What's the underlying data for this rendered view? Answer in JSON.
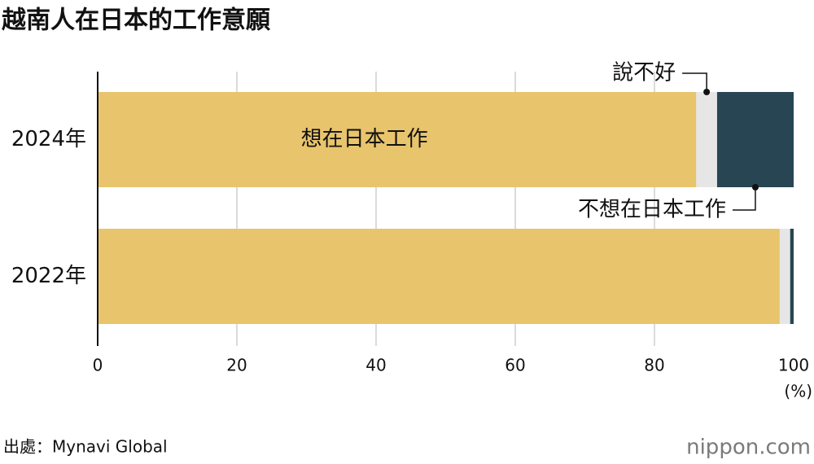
{
  "chart_data": {
    "type": "stacked-bar-horizontal",
    "title": "越南人在日本的工作意願",
    "categories": [
      "2024年",
      "2022年"
    ],
    "series": [
      {
        "name": "想在日本工作",
        "color": "#e8c46c",
        "values": [
          86,
          98
        ]
      },
      {
        "name": "說不好",
        "color": "#e6e6e6",
        "values": [
          3,
          1.5
        ]
      },
      {
        "name": "不想在日本工作",
        "color": "#274552",
        "values": [
          11,
          0.5
        ]
      }
    ],
    "xlim": [
      0,
      100
    ],
    "xticks": [
      0,
      20,
      40,
      60,
      80,
      100
    ],
    "x_unit": "(%)",
    "grid": true,
    "source": "出處：Mynavi Global",
    "logo": "nippon.com"
  }
}
